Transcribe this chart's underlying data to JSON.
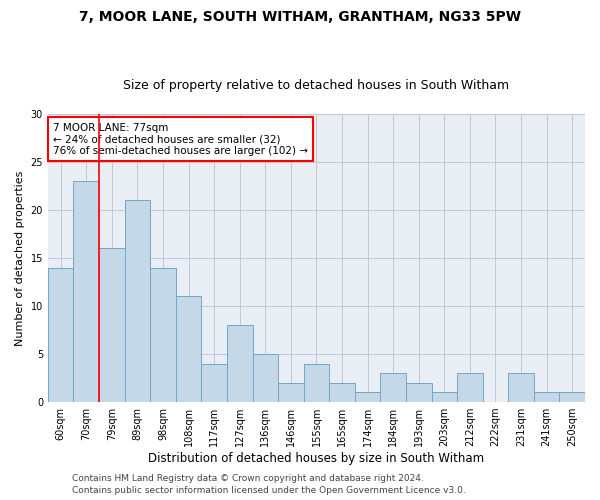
{
  "title": "7, MOOR LANE, SOUTH WITHAM, GRANTHAM, NG33 5PW",
  "subtitle": "Size of property relative to detached houses in South Witham",
  "xlabel": "Distribution of detached houses by size in South Witham",
  "ylabel": "Number of detached properties",
  "footer_line1": "Contains HM Land Registry data © Crown copyright and database right 2024.",
  "footer_line2": "Contains public sector information licensed under the Open Government Licence v3.0.",
  "categories": [
    "60sqm",
    "70sqm",
    "79sqm",
    "89sqm",
    "98sqm",
    "108sqm",
    "117sqm",
    "127sqm",
    "136sqm",
    "146sqm",
    "155sqm",
    "165sqm",
    "174sqm",
    "184sqm",
    "193sqm",
    "203sqm",
    "212sqm",
    "222sqm",
    "231sqm",
    "241sqm",
    "250sqm"
  ],
  "values": [
    14,
    23,
    16,
    21,
    14,
    11,
    4,
    8,
    5,
    2,
    4,
    2,
    1,
    3,
    2,
    1,
    3,
    0,
    3,
    1,
    1
  ],
  "bar_color": "#c5d8e8",
  "bar_edge_color": "#6ea8c8",
  "grid_color": "#c0c8d0",
  "bg_color": "#e8eef4",
  "annotation_line1": "7 MOOR LANE: 77sqm",
  "annotation_line2": "← 24% of detached houses are smaller (32)",
  "annotation_line3": "76% of semi-detached houses are larger (102) →",
  "red_line_x": 1.5,
  "ylim": [
    0,
    30
  ],
  "yticks": [
    0,
    5,
    10,
    15,
    20,
    25,
    30
  ],
  "title_fontsize": 10,
  "subtitle_fontsize": 9,
  "annotation_fontsize": 7.5,
  "ylabel_fontsize": 8,
  "xlabel_fontsize": 8.5,
  "tick_fontsize": 7,
  "footer_fontsize": 6.5
}
